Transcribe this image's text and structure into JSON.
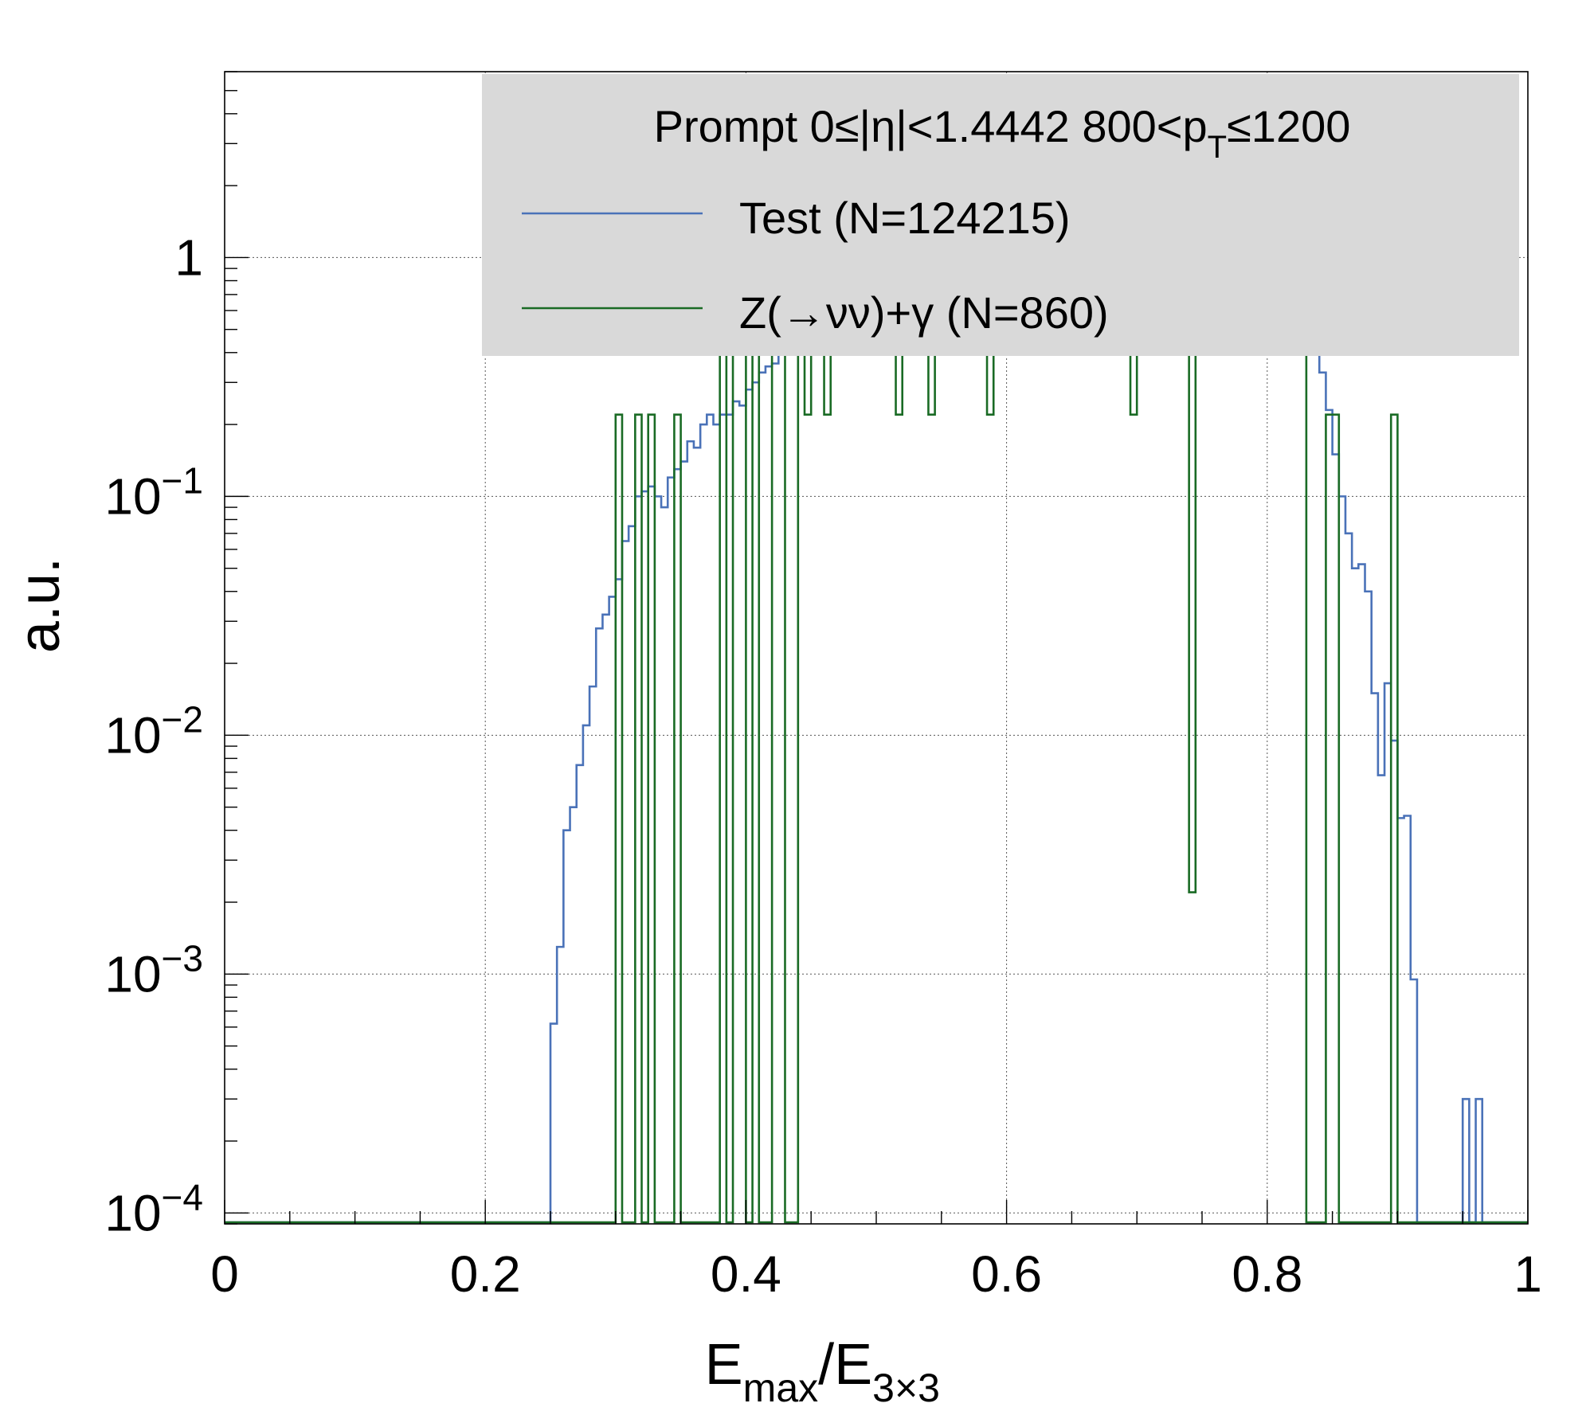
{
  "chart_data": {
    "type": "step-histogram",
    "xlabel": {
      "main": "E",
      "sub1": "max",
      "mid": "/E",
      "sub2": "3×3"
    },
    "ylabel": "a.u.",
    "xlim": [
      0,
      1
    ],
    "ylim": [
      9e-05,
      6
    ],
    "yscale": "log",
    "grid": true,
    "legend_placement": "top-right",
    "x_ticks": [
      {
        "v": 0,
        "label": "0"
      },
      {
        "v": 0.2,
        "label": "0.2"
      },
      {
        "v": 0.4,
        "label": "0.4"
      },
      {
        "v": 0.6,
        "label": "0.6"
      },
      {
        "v": 0.8,
        "label": "0.8"
      },
      {
        "v": 1,
        "label": "1"
      }
    ],
    "y_ticks": [
      {
        "v": 1,
        "base": "1",
        "exp": ""
      },
      {
        "v": 0.1,
        "base": "10",
        "exp": "−1"
      },
      {
        "v": 0.01,
        "base": "10",
        "exp": "−2"
      },
      {
        "v": 0.001,
        "base": "10",
        "exp": "−3"
      },
      {
        "v": 0.0001,
        "base": "10",
        "exp": "−4"
      }
    ],
    "legend": {
      "header": {
        "a": "Prompt  0≤|η|<1.4442  800<p",
        "sub": "T",
        "b": "≤1200"
      },
      "entries": [
        {
          "label": "Test (N=124215)",
          "color": "#4a72b8"
        },
        {
          "label": "Z(→νν)+γ (N=860)",
          "color": "#1a6b25"
        }
      ]
    },
    "series": [
      {
        "name": "Test (N=124215)",
        "color": "#4a72b8",
        "bin_width": 0.005,
        "bins": [
          [
            0.25,
            0.00062
          ],
          [
            0.255,
            0.0013
          ],
          [
            0.26,
            0.004
          ],
          [
            0.265,
            0.005
          ],
          [
            0.27,
            0.0075
          ],
          [
            0.275,
            0.011
          ],
          [
            0.28,
            0.016
          ],
          [
            0.285,
            0.028
          ],
          [
            0.29,
            0.032
          ],
          [
            0.295,
            0.038
          ],
          [
            0.3,
            0.045
          ],
          [
            0.305,
            0.065
          ],
          [
            0.31,
            0.075
          ],
          [
            0.315,
            0.1
          ],
          [
            0.32,
            0.105
          ],
          [
            0.325,
            0.11
          ],
          [
            0.33,
            0.1
          ],
          [
            0.335,
            0.09
          ],
          [
            0.34,
            0.12
          ],
          [
            0.345,
            0.13
          ],
          [
            0.35,
            0.14
          ],
          [
            0.355,
            0.17
          ],
          [
            0.36,
            0.16
          ],
          [
            0.365,
            0.2
          ],
          [
            0.37,
            0.22
          ],
          [
            0.375,
            0.2
          ],
          [
            0.38,
            0.22
          ],
          [
            0.385,
            0.22
          ],
          [
            0.39,
            0.25
          ],
          [
            0.395,
            0.24
          ],
          [
            0.4,
            0.28
          ],
          [
            0.405,
            0.3
          ],
          [
            0.41,
            0.33
          ],
          [
            0.415,
            0.35
          ],
          [
            0.42,
            0.36
          ],
          [
            0.425,
            0.42
          ],
          [
            0.43,
            0.45
          ],
          [
            0.435,
            0.5
          ],
          [
            0.44,
            0.55
          ],
          [
            0.445,
            0.6
          ],
          [
            0.45,
            0.62
          ],
          [
            0.455,
            0.65
          ],
          [
            0.46,
            0.7
          ],
          [
            0.465,
            0.75
          ],
          [
            0.47,
            0.8
          ],
          [
            0.475,
            0.85
          ],
          [
            0.48,
            0.88
          ],
          [
            0.485,
            0.9
          ],
          [
            0.49,
            0.95
          ],
          [
            0.495,
            1.0
          ],
          [
            0.5,
            1.0
          ],
          [
            0.505,
            1.05
          ],
          [
            0.51,
            1.1
          ],
          [
            0.515,
            1.1
          ],
          [
            0.52,
            1.15
          ],
          [
            0.525,
            1.2
          ],
          [
            0.53,
            1.2
          ],
          [
            0.535,
            1.25
          ],
          [
            0.54,
            1.3
          ],
          [
            0.545,
            1.3
          ],
          [
            0.55,
            1.35
          ],
          [
            0.555,
            1.4
          ],
          [
            0.56,
            1.4
          ],
          [
            0.565,
            1.45
          ],
          [
            0.57,
            1.5
          ],
          [
            0.575,
            1.5
          ],
          [
            0.58,
            1.55
          ],
          [
            0.585,
            1.6
          ],
          [
            0.59,
            1.6
          ],
          [
            0.595,
            1.65
          ],
          [
            0.6,
            1.7
          ],
          [
            0.605,
            1.7
          ],
          [
            0.61,
            1.75
          ],
          [
            0.615,
            1.8
          ],
          [
            0.62,
            1.8
          ],
          [
            0.625,
            1.85
          ],
          [
            0.63,
            1.9
          ],
          [
            0.635,
            1.9
          ],
          [
            0.64,
            1.95
          ],
          [
            0.645,
            2.0
          ],
          [
            0.65,
            2.0
          ],
          [
            0.655,
            2.05
          ],
          [
            0.66,
            2.1
          ],
          [
            0.665,
            2.1
          ],
          [
            0.67,
            2.15
          ],
          [
            0.675,
            2.2
          ],
          [
            0.68,
            2.2
          ],
          [
            0.685,
            2.25
          ],
          [
            0.69,
            2.3
          ],
          [
            0.695,
            2.3
          ],
          [
            0.7,
            2.35
          ],
          [
            0.705,
            2.4
          ],
          [
            0.71,
            2.4
          ],
          [
            0.715,
            2.45
          ],
          [
            0.72,
            2.5
          ],
          [
            0.725,
            2.5
          ],
          [
            0.73,
            2.55
          ],
          [
            0.735,
            2.6
          ],
          [
            0.74,
            2.6
          ],
          [
            0.745,
            2.65
          ],
          [
            0.75,
            2.7
          ],
          [
            0.755,
            2.7
          ],
          [
            0.76,
            2.75
          ],
          [
            0.765,
            2.8
          ],
          [
            0.77,
            2.8
          ],
          [
            0.775,
            2.75
          ],
          [
            0.78,
            2.7
          ],
          [
            0.785,
            2.6
          ],
          [
            0.79,
            2.5
          ],
          [
            0.795,
            2.4
          ],
          [
            0.8,
            2.3
          ],
          [
            0.805,
            2.1
          ],
          [
            0.81,
            1.9
          ],
          [
            0.815,
            1.6
          ],
          [
            0.82,
            1.3
          ],
          [
            0.825,
            1.0
          ],
          [
            0.83,
            0.7
          ],
          [
            0.835,
            0.48
          ],
          [
            0.84,
            0.33
          ],
          [
            0.845,
            0.23
          ],
          [
            0.85,
            0.15
          ],
          [
            0.855,
            0.1
          ],
          [
            0.86,
            0.07
          ],
          [
            0.865,
            0.05
          ],
          [
            0.87,
            0.052
          ],
          [
            0.875,
            0.04
          ],
          [
            0.88,
            0.015
          ],
          [
            0.885,
            0.0068
          ],
          [
            0.89,
            0.0165
          ],
          [
            0.895,
            0.0095
          ],
          [
            0.9,
            0.0045
          ],
          [
            0.905,
            0.0046
          ],
          [
            0.91,
            0.00095
          ],
          [
            0.95,
            0.0003
          ],
          [
            0.955,
            9e-05
          ],
          [
            0.96,
            0.0003
          ]
        ]
      },
      {
        "name": "Z(→νν)+γ (N=860)",
        "color": "#1a6b25",
        "bin_width": 0.005,
        "bins": [
          [
            0.3,
            0.22
          ],
          [
            0.315,
            0.22
          ],
          [
            0.325,
            0.22
          ],
          [
            0.345,
            0.22
          ],
          [
            0.38,
            0.9
          ],
          [
            0.39,
            0.9
          ],
          [
            0.395,
            0.9
          ],
          [
            0.405,
            1.2
          ],
          [
            0.42,
            0.9
          ],
          [
            0.425,
            0.9
          ],
          [
            0.44,
            1.7
          ],
          [
            0.445,
            0.22
          ],
          [
            0.45,
            1.2
          ],
          [
            0.455,
            1.2
          ],
          [
            0.46,
            0.22
          ],
          [
            0.465,
            1.2
          ],
          [
            0.47,
            1.7
          ],
          [
            0.475,
            1.2
          ],
          [
            0.48,
            1.5
          ],
          [
            0.485,
            1.2
          ],
          [
            0.49,
            1.7
          ],
          [
            0.495,
            1.7
          ],
          [
            0.5,
            1.7
          ],
          [
            0.505,
            0.9
          ],
          [
            0.51,
            1.7
          ],
          [
            0.515,
            0.22
          ],
          [
            0.52,
            1.5
          ],
          [
            0.525,
            1.5
          ],
          [
            0.53,
            1.7
          ],
          [
            0.535,
            1.2
          ],
          [
            0.54,
            0.22
          ],
          [
            0.545,
            0.9
          ],
          [
            0.55,
            0.9
          ],
          [
            0.555,
            1.2
          ],
          [
            0.56,
            1.2
          ],
          [
            0.565,
            1.7
          ],
          [
            0.57,
            1.2
          ],
          [
            0.575,
            0.9
          ],
          [
            0.58,
            1.7
          ],
          [
            0.585,
            0.22
          ],
          [
            0.59,
            1.2
          ],
          [
            0.595,
            1.5
          ],
          [
            0.6,
            1.7
          ],
          [
            0.605,
            1.5
          ],
          [
            0.61,
            1.7
          ],
          [
            0.615,
            1.2
          ],
          [
            0.62,
            1.7
          ],
          [
            0.625,
            1.5
          ],
          [
            0.63,
            1.7
          ],
          [
            0.635,
            1.2
          ],
          [
            0.64,
            1.5
          ],
          [
            0.645,
            1.2
          ],
          [
            0.65,
            1.7
          ],
          [
            0.655,
            1.5
          ],
          [
            0.66,
            1.5
          ],
          [
            0.665,
            1.7
          ],
          [
            0.67,
            1.2
          ],
          [
            0.675,
            1.7
          ],
          [
            0.68,
            1.5
          ],
          [
            0.685,
            1.7
          ],
          [
            0.69,
            1.2
          ],
          [
            0.695,
            0.22
          ],
          [
            0.7,
            1.7
          ],
          [
            0.705,
            1.2
          ],
          [
            0.71,
            1.5
          ],
          [
            0.715,
            1.7
          ],
          [
            0.72,
            1.2
          ],
          [
            0.725,
            0.9
          ],
          [
            0.73,
            1.7
          ],
          [
            0.735,
            1.7
          ],
          [
            0.74,
            0.0022
          ],
          [
            0.745,
            1.2
          ],
          [
            0.75,
            1.5
          ],
          [
            0.755,
            2.3
          ],
          [
            0.76,
            1.7
          ],
          [
            0.765,
            2.8
          ],
          [
            0.77,
            2.8
          ],
          [
            0.775,
            3.5
          ],
          [
            0.78,
            2.6
          ],
          [
            0.785,
            3.2
          ],
          [
            0.79,
            2.9
          ],
          [
            0.795,
            3.0
          ],
          [
            0.8,
            1.7
          ],
          [
            0.805,
            2.9
          ],
          [
            0.81,
            1.7
          ],
          [
            0.815,
            1.2
          ],
          [
            0.82,
            0.9
          ],
          [
            0.825,
            0.5
          ],
          [
            0.845,
            0.22
          ],
          [
            0.85,
            0.22
          ],
          [
            0.895,
            0.22
          ]
        ]
      }
    ]
  }
}
